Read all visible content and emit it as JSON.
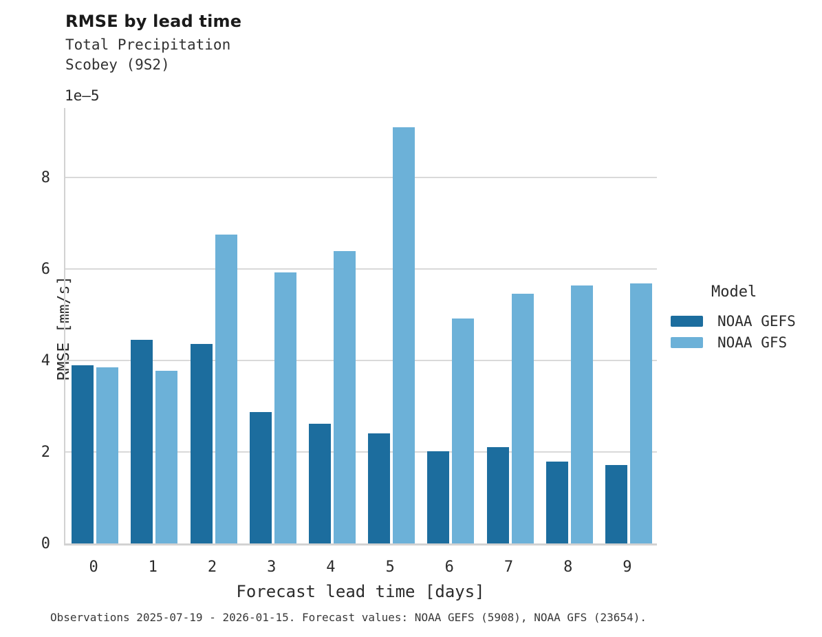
{
  "header": {
    "title": "RMSE by lead time",
    "subtitle_line1": "Total Precipitation",
    "subtitle_line2": "Scobey (9S2)"
  },
  "axes": {
    "y_offset_label": "1e–5",
    "ylabel": "RMSE [mm/s]",
    "xlabel": "Forecast lead time [days]"
  },
  "legend": {
    "title": "Model",
    "entries": [
      {
        "label": "NOAA GEFS",
        "color": "#1c6d9e"
      },
      {
        "label": "NOAA GFS",
        "color": "#6cb1d8"
      }
    ]
  },
  "caption": "Observations 2025-07-19 - 2026-01-15. Forecast values: NOAA GEFS (5908), NOAA GFS (23654).",
  "colors": {
    "gefs_dark_blue": "#1c6d9e",
    "gfs_light_blue": "#6cb1d8",
    "gridline": "#d9d9d9",
    "spine": "#d2d2d2",
    "text": "#2b2b2b"
  },
  "chart_data": {
    "type": "bar",
    "title": "RMSE by lead time",
    "subtitle": "Total Precipitation / Scobey (9S2)",
    "xlabel": "Forecast lead time [days]",
    "ylabel": "RMSE [mm/s]",
    "y_scale_offset": "1e-5",
    "categories": [
      "0",
      "1",
      "2",
      "3",
      "4",
      "5",
      "6",
      "7",
      "8",
      "9"
    ],
    "series": [
      {
        "name": "NOAA GEFS",
        "color": "#1c6d9e",
        "values": [
          3.9,
          4.46,
          4.36,
          2.87,
          2.62,
          2.41,
          2.02,
          2.11,
          1.79,
          1.72
        ]
      },
      {
        "name": "NOAA GFS",
        "color": "#6cb1d8",
        "values": [
          3.85,
          3.78,
          6.76,
          5.93,
          6.4,
          9.1,
          4.92,
          5.46,
          5.64,
          5.69
        ]
      }
    ],
    "ylim": [
      0,
      9.57
    ],
    "yticks": [
      0,
      2,
      4,
      6,
      8
    ],
    "grid": "horizontal",
    "legend_title": "Model",
    "legend_position": "right"
  }
}
